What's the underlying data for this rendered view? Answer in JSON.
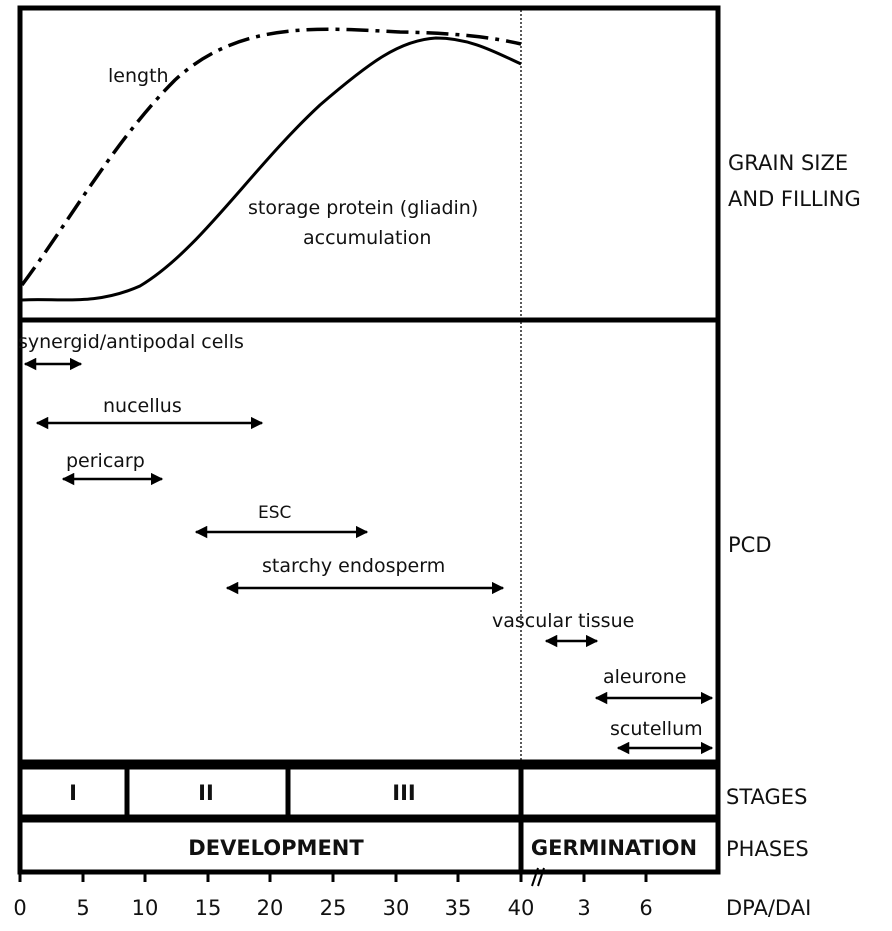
{
  "right_labels": {
    "grain_1": "GRAIN SIZE",
    "grain_2": "AND FILLING",
    "pcd": "PCD",
    "stages": "STAGES",
    "phases": "PHASES",
    "axis": "DPA/DAI"
  },
  "curves": {
    "length": "length",
    "storage_1": "storage protein (gliadin)",
    "storage_2": "accumulation"
  },
  "pcd_events": [
    {
      "label": "synergid/antipodal cells",
      "start": 0.5,
      "end": 5
    },
    {
      "label": "nucellus",
      "start": 1.5,
      "end": 19
    },
    {
      "label": "pericarp",
      "start": 3.5,
      "end": 11
    },
    {
      "label": "ESC",
      "start": 14.5,
      "end": 27.5
    },
    {
      "label": "starchy endosperm",
      "start": 16.5,
      "end": 38.5
    },
    {
      "label": "vascular tissue",
      "start": "2 DAI",
      "end": "4 DAI"
    },
    {
      "label": "aleurone",
      "start": "4 DAI",
      "end": "9 DAI"
    },
    {
      "label": "scutellum",
      "start": "5 DAI",
      "end": "9 DAI"
    }
  ],
  "stages": [
    "I",
    "II",
    "III"
  ],
  "phases": [
    "DEVELOPMENT",
    "GERMINATION"
  ],
  "x_axis": {
    "dpa_ticks": [
      "0",
      "5",
      "10",
      "15",
      "20",
      "25",
      "30",
      "35",
      "40"
    ],
    "dai_ticks": [
      "3",
      "6"
    ]
  }
}
